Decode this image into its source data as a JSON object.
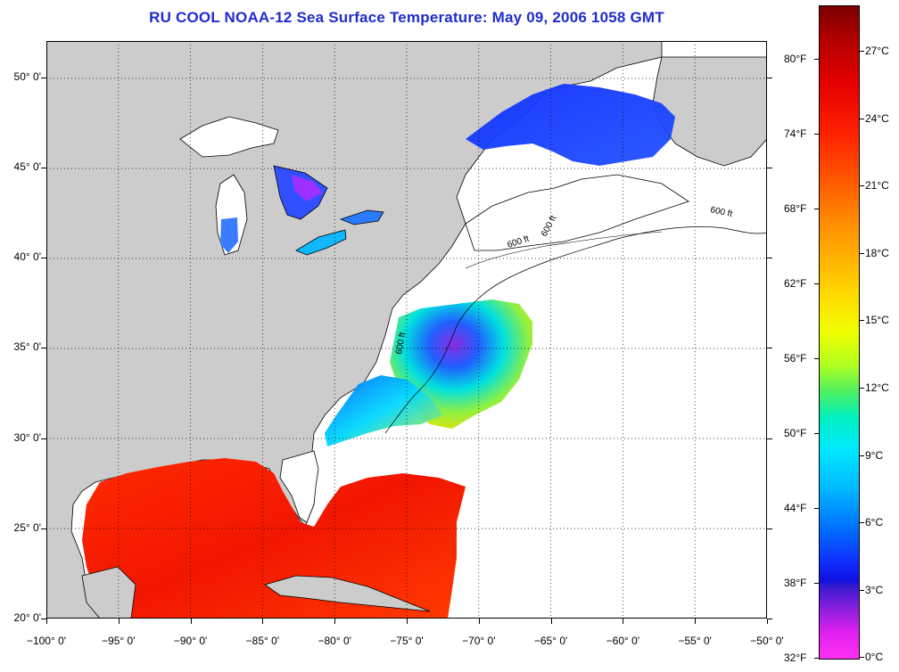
{
  "title": "RU COOL  NOAA-12  Sea Surface Temperature:  May 09, 2006 1058 GMT",
  "map": {
    "lon_range": [
      -100,
      -50
    ],
    "lat_range": [
      20,
      52
    ],
    "x_ticks": [
      "−100° 0'",
      "−95° 0'",
      "−90° 0'",
      "−85° 0'",
      "−80° 0'",
      "−75° 0'",
      "−70° 0'",
      "−65° 0'",
      "−60° 0'",
      "−55° 0'",
      "−50° 0'"
    ],
    "y_ticks": [
      "20° 0'",
      "25° 0'",
      "30° 0'",
      "35° 0'",
      "40° 0'",
      "45° 0'",
      "50° 0'"
    ],
    "isobath_labels": [
      "600 ft",
      "600 ft",
      "600 ft",
      "600 ft"
    ],
    "land_color": "#cccccc",
    "grid": true
  },
  "colorbar": {
    "fahrenheit": [
      "80°F",
      "74°F",
      "68°F",
      "62°F",
      "56°F",
      "50°F",
      "44°F",
      "38°F",
      "32°F"
    ],
    "celsius": [
      "27°C",
      "24°C",
      "21°C",
      "18°C",
      "15°C",
      "12°C",
      "9°C",
      "6°C",
      "3°C",
      "0°C"
    ]
  }
}
